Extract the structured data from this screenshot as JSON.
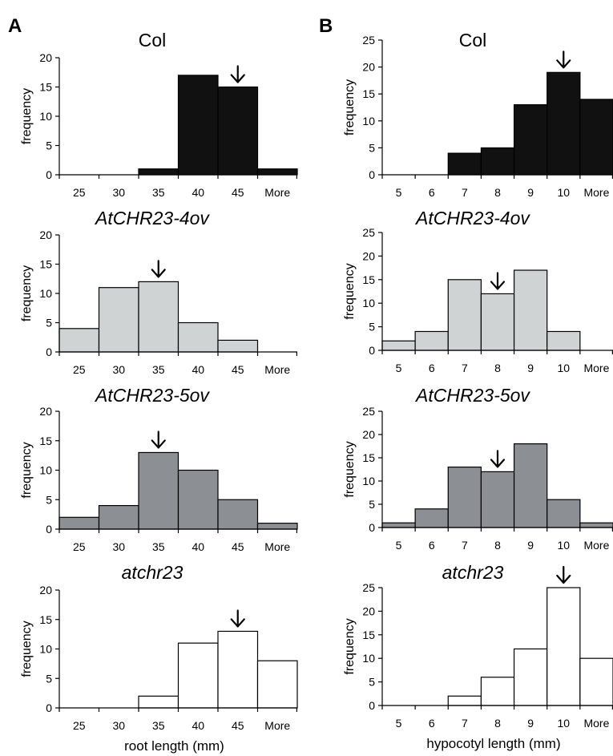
{
  "panel_letters": [
    "A",
    "B"
  ],
  "colors": {
    "col": "#111111",
    "ov4": "#d0d3d4",
    "ov5": "#8c8f93",
    "mutant": "#ffffff",
    "edge": "#000000"
  },
  "chart_data": [
    {
      "id": "a1",
      "panel": "A",
      "type": "bar",
      "title": "Col",
      "title_italic": false,
      "categories": [
        "25",
        "30",
        "35",
        "40",
        "45",
        "More"
      ],
      "values": [
        0,
        0,
        1,
        17,
        15,
        1
      ],
      "ylabel": "frequency",
      "xlabel": "",
      "yticks": [
        "0",
        "5",
        "10",
        "15",
        "20"
      ],
      "ylim": [
        0,
        20
      ],
      "arrow_category": "45",
      "bar_color": "#111111"
    },
    {
      "id": "a2",
      "panel": "A",
      "type": "bar",
      "title": "AtCHR23-4ov",
      "title_italic": true,
      "categories": [
        "25",
        "30",
        "35",
        "40",
        "45",
        "More"
      ],
      "values": [
        4,
        11,
        12,
        5,
        2,
        0
      ],
      "ylabel": "frequency",
      "xlabel": "",
      "yticks": [
        "0",
        "5",
        "10",
        "15",
        "20"
      ],
      "ylim": [
        0,
        20
      ],
      "arrow_category": "35",
      "bar_color": "#d0d3d4"
    },
    {
      "id": "a3",
      "panel": "A",
      "type": "bar",
      "title": "AtCHR23-5ov",
      "title_italic": true,
      "categories": [
        "25",
        "30",
        "35",
        "40",
        "45",
        "More"
      ],
      "values": [
        2,
        4,
        13,
        10,
        5,
        1
      ],
      "ylabel": "frequency",
      "xlabel": "",
      "yticks": [
        "0",
        "5",
        "10",
        "15",
        "20"
      ],
      "ylim": [
        0,
        20
      ],
      "arrow_category": "35",
      "bar_color": "#8c8f93"
    },
    {
      "id": "a4",
      "panel": "A",
      "type": "bar",
      "title": "atchr23",
      "title_italic": true,
      "categories": [
        "25",
        "30",
        "35",
        "40",
        "45",
        "More"
      ],
      "values": [
        0,
        0,
        2,
        11,
        13,
        8
      ],
      "ylabel": "frequency",
      "xlabel": "root length (mm)",
      "yticks": [
        "0",
        "5",
        "10",
        "15",
        "20"
      ],
      "ylim": [
        0,
        20
      ],
      "arrow_category": "45",
      "bar_color": "#ffffff"
    },
    {
      "id": "b1",
      "panel": "B",
      "type": "bar",
      "title": "Col",
      "title_italic": false,
      "categories": [
        "5",
        "6",
        "7",
        "8",
        "9",
        "10",
        "More"
      ],
      "values": [
        0,
        0,
        4,
        5,
        13,
        19,
        14
      ],
      "ylabel": "frequency",
      "xlabel": "",
      "yticks": [
        "0",
        "5",
        "10",
        "15",
        "20",
        "25"
      ],
      "ylim": [
        0,
        25
      ],
      "arrow_category": "10",
      "bar_color": "#111111"
    },
    {
      "id": "b2",
      "panel": "B",
      "type": "bar",
      "title": "AtCHR23-4ov",
      "title_italic": true,
      "categories": [
        "5",
        "6",
        "7",
        "8",
        "9",
        "10",
        "More"
      ],
      "values": [
        2,
        4,
        15,
        12,
        17,
        4,
        0
      ],
      "ylabel": "frequency",
      "xlabel": "",
      "yticks": [
        "0",
        "5",
        "10",
        "15",
        "20",
        "25"
      ],
      "ylim": [
        0,
        25
      ],
      "arrow_category": "8",
      "bar_color": "#d0d3d4"
    },
    {
      "id": "b3",
      "panel": "B",
      "type": "bar",
      "title": "AtCHR23-5ov",
      "title_italic": true,
      "categories": [
        "5",
        "6",
        "7",
        "8",
        "9",
        "10",
        "More"
      ],
      "values": [
        1,
        4,
        13,
        12,
        18,
        6,
        1
      ],
      "ylabel": "frequency",
      "xlabel": "",
      "yticks": [
        "0",
        "5",
        "10",
        "15",
        "20",
        "25"
      ],
      "ylim": [
        0,
        25
      ],
      "arrow_category": "8",
      "bar_color": "#8c8f93"
    },
    {
      "id": "b4",
      "panel": "B",
      "type": "bar",
      "title": "atchr23",
      "title_italic": true,
      "categories": [
        "5",
        "6",
        "7",
        "8",
        "9",
        "10",
        "More"
      ],
      "values": [
        0,
        0,
        2,
        6,
        12,
        25,
        10
      ],
      "ylabel": "frequency",
      "xlabel": "hypocotyl length (mm)",
      "yticks": [
        "0",
        "5",
        "10",
        "15",
        "20",
        "25"
      ],
      "ylim": [
        0,
        25
      ],
      "arrow_category": "10",
      "bar_color": "#ffffff"
    }
  ]
}
